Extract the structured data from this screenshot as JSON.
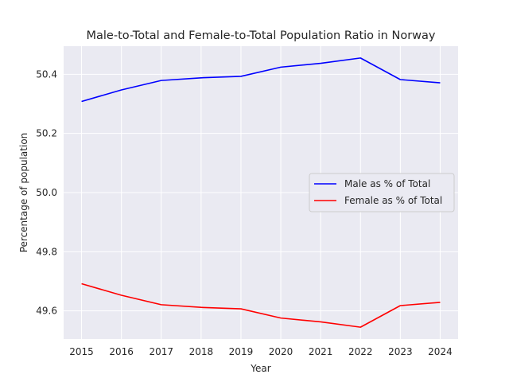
{
  "chart_data": {
    "type": "line",
    "title": "Male-to-Total and Female-to-Total Population Ratio in Norway",
    "xlabel": "Year",
    "ylabel": "Percentage of population",
    "x": [
      2015,
      2016,
      2017,
      2018,
      2019,
      2020,
      2021,
      2022,
      2023,
      2024
    ],
    "xlim": [
      2014.55,
      2024.45
    ],
    "ylim": [
      49.505,
      50.495
    ],
    "yticks": [
      49.6,
      49.8,
      50.0,
      50.2,
      50.4
    ],
    "ytick_labels": [
      "49.6",
      "49.8",
      "50.0",
      "50.2",
      "50.4"
    ],
    "grid": true,
    "legend_position": "center-right",
    "series": [
      {
        "name": "Male as % of Total",
        "color": "#0000ff",
        "values": [
          50.308,
          50.347,
          50.379,
          50.388,
          50.393,
          50.424,
          50.437,
          50.455,
          50.382,
          50.371
        ]
      },
      {
        "name": "Female as % of Total",
        "color": "#ff0000",
        "values": [
          49.692,
          49.653,
          49.621,
          49.612,
          49.607,
          49.576,
          49.563,
          49.545,
          49.618,
          49.629
        ]
      }
    ]
  }
}
